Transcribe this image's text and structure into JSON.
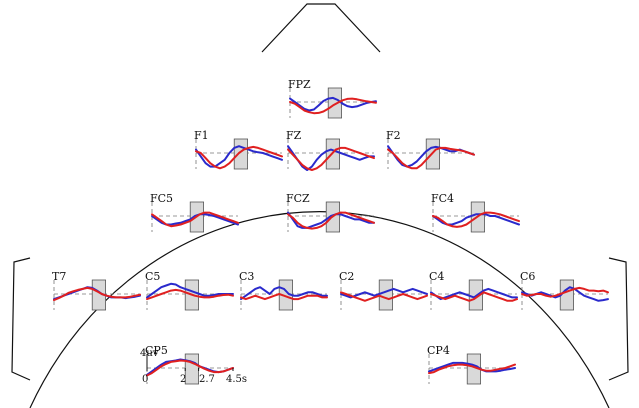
{
  "chart_data": {
    "type": "line",
    "legend": "none",
    "grid": false,
    "colors": {
      "series_a": "#2a2acc",
      "series_b": "#e02020",
      "window": "#d9d9d9",
      "outline": "#111111",
      "zero_line": "#777777"
    },
    "scale": {
      "amplitude_label": "4uv",
      "x_ticks": [
        "0",
        "2",
        "2.7",
        "4.5s"
      ],
      "x_values": [
        0,
        2,
        2.7,
        4.5
      ],
      "window_x": [
        2,
        2.7
      ]
    },
    "channels": [
      {
        "name": "FPZ",
        "blue": [
          1,
          0,
          -1,
          -2,
          -2.5,
          -2.2,
          -1,
          0.3,
          1,
          1.2,
          0.6,
          -0.5,
          -1.2,
          -1.5,
          -1.3,
          -0.8,
          -0.3,
          0,
          0.2
        ],
        "red": [
          0,
          -0.5,
          -1.5,
          -2.5,
          -3,
          -3.3,
          -3.2,
          -2.8,
          -2,
          -1,
          -0.2,
          0.5,
          0.9,
          1,
          0.8,
          0.5,
          0.2,
          0,
          -0.2
        ]
      },
      {
        "name": "F1",
        "blue": [
          1,
          -1,
          -3,
          -4,
          -4,
          -3,
          -2,
          0,
          1.5,
          2,
          1.5,
          1,
          0.5,
          0.2,
          0,
          -0.5,
          -1,
          -1.5,
          -2
        ],
        "red": [
          0.5,
          0,
          -1.5,
          -3,
          -4,
          -4.5,
          -4,
          -3,
          -1.5,
          0,
          1,
          1.5,
          1.8,
          1.5,
          1,
          0.5,
          0,
          -0.5,
          -1
        ]
      },
      {
        "name": "FZ",
        "blue": [
          2,
          0,
          -2,
          -4,
          -5,
          -4,
          -2,
          -0.5,
          0.5,
          1,
          0.5,
          0,
          -0.5,
          -1,
          -1.5,
          -2,
          -1.5,
          -1,
          -1
        ],
        "red": [
          1,
          -0.5,
          -2,
          -3.5,
          -4.5,
          -5,
          -4.5,
          -3.5,
          -2,
          -0.5,
          1,
          1.5,
          1.5,
          1,
          0.5,
          0,
          -0.5,
          -1,
          -1.5
        ]
      },
      {
        "name": "F2",
        "blue": [
          2,
          0,
          -2,
          -3.5,
          -4,
          -3.5,
          -2.5,
          -1,
          0.5,
          1.5,
          1.8,
          1.5,
          1,
          0.5,
          0.5,
          1,
          0.5,
          0,
          -0.5
        ],
        "red": [
          1,
          0,
          -1.5,
          -3,
          -4,
          -4.5,
          -4.5,
          -3.5,
          -2,
          -0.5,
          1,
          1.5,
          1.5,
          1.2,
          1,
          0.8,
          0.5,
          0,
          -0.5
        ]
      },
      {
        "name": "FC5",
        "blue": [
          0,
          -1,
          -2,
          -2.5,
          -2.5,
          -2.2,
          -2,
          -1.5,
          -1,
          0,
          0.5,
          0.5,
          0.3,
          0,
          -0.5,
          -1,
          -1.5,
          -2,
          -2.5
        ],
        "red": [
          0.5,
          -0.5,
          -1.5,
          -2.5,
          -3,
          -2.8,
          -2.5,
          -2,
          -1.5,
          -0.5,
          0.5,
          1,
          1,
          0.5,
          0,
          -0.5,
          -1,
          -1.5,
          -2
        ]
      },
      {
        "name": "FCZ",
        "blue": [
          1,
          -1,
          -3,
          -3.5,
          -3.5,
          -3,
          -2.5,
          -2,
          -1,
          0,
          0.5,
          0.5,
          0,
          -0.5,
          -1,
          -1,
          -1.5,
          -2,
          -2
        ],
        "red": [
          0.5,
          -0.5,
          -2,
          -3,
          -3.5,
          -3.7,
          -3.5,
          -3,
          -2,
          -0.5,
          0.5,
          1,
          1,
          0.5,
          0,
          -0.5,
          -1,
          -1.5,
          -2
        ]
      },
      {
        "name": "FC4",
        "blue": [
          0,
          -1,
          -2,
          -2.5,
          -2.5,
          -2,
          -1.5,
          -0.5,
          0,
          0.5,
          0.5,
          0.5,
          0,
          0,
          -0.5,
          -1,
          -1.5,
          -2,
          -2.5
        ],
        "red": [
          0,
          -0.5,
          -1.5,
          -2.5,
          -3,
          -3.2,
          -3,
          -2.5,
          -1.5,
          -0.5,
          0.5,
          1,
          1,
          0.8,
          0.5,
          0,
          -0.5,
          -1,
          -1.5
        ]
      },
      {
        "name": "T7",
        "blue": [
          -1.5,
          -1,
          -0.5,
          0,
          0.5,
          1,
          1.5,
          2,
          1.8,
          1,
          0,
          -0.5,
          -1,
          -1,
          -1,
          -1.2,
          -1,
          -0.8,
          -0.5
        ],
        "red": [
          -1.8,
          -1.2,
          -0.5,
          0.3,
          0.8,
          1.2,
          1.5,
          1.8,
          1.5,
          0.8,
          0,
          -0.5,
          -0.8,
          -1,
          -1,
          -1,
          -0.8,
          -0.5,
          -0.2
        ]
      },
      {
        "name": "C5",
        "blue": [
          -1,
          0,
          1,
          2,
          2.5,
          3,
          2.8,
          2,
          1.5,
          1,
          0.5,
          0,
          -0.5,
          -0.5,
          -0.3,
          0,
          0,
          0,
          0
        ],
        "red": [
          -1.5,
          -1,
          -0.5,
          0,
          0.5,
          1,
          1.2,
          1,
          0.5,
          0,
          -0.5,
          -0.8,
          -1,
          -1,
          -0.8,
          -0.5,
          -0.3,
          -0.2,
          -0.5
        ]
      },
      {
        "name": "C3",
        "blue": [
          -1.5,
          -0.5,
          0.5,
          1.5,
          2,
          1,
          0,
          1.5,
          2,
          1.5,
          0,
          -0.5,
          -0.5,
          0,
          0.5,
          0.5,
          0,
          -0.5,
          -0.5
        ],
        "red": [
          -1,
          -1.5,
          -1,
          -0.5,
          -1,
          -1.5,
          -1,
          -0.5,
          0,
          -0.5,
          -1,
          -1.5,
          -1.5,
          -1,
          -0.5,
          -0.5,
          -0.5,
          -1,
          -1
        ]
      },
      {
        "name": "C2",
        "blue": [
          0,
          -0.5,
          -1,
          -0.5,
          0,
          0.5,
          0,
          -0.5,
          0,
          0.5,
          1,
          1.5,
          1,
          0.5,
          1,
          1.5,
          1,
          0.5,
          0
        ],
        "red": [
          0.5,
          0,
          -0.5,
          -1,
          -1.5,
          -2,
          -1.5,
          -1,
          -0.5,
          -1,
          -1.5,
          -1,
          -0.5,
          0,
          -0.5,
          -1,
          -1.5,
          -1,
          -0.5
        ]
      },
      {
        "name": "C4",
        "blue": [
          0.5,
          -0.5,
          -1.5,
          -1,
          -0.5,
          0,
          0.5,
          0,
          -0.5,
          -1,
          0,
          1,
          1.5,
          1,
          0.5,
          0,
          -0.5,
          -1,
          -1
        ],
        "red": [
          0,
          -0.5,
          -1,
          -1.5,
          -1,
          -0.5,
          -1,
          -1.5,
          -2,
          -1.5,
          -0.5,
          0.5,
          0,
          -0.5,
          -1,
          -1.5,
          -2,
          -2,
          -1.5
        ]
      },
      {
        "name": "C6",
        "blue": [
          0.5,
          0,
          -0.5,
          0,
          0.5,
          0,
          -0.5,
          -1,
          -0.5,
          1,
          2,
          1.5,
          0.5,
          -0.5,
          -1,
          -1.5,
          -2,
          -1.8,
          -1.5
        ],
        "red": [
          0,
          -0.5,
          -0.3,
          0,
          0,
          -0.5,
          -0.8,
          -0.5,
          0,
          0.5,
          1,
          1.5,
          1.8,
          1.5,
          1,
          1,
          0.8,
          1,
          0.5
        ]
      },
      {
        "name": "CP5",
        "blue": [
          -2,
          -1,
          0,
          1,
          1.8,
          2,
          2.2,
          2.5,
          2.3,
          2,
          1.5,
          0.5,
          0,
          -0.5,
          -1,
          -1.2,
          -1,
          -0.5,
          0
        ],
        "red": [
          -2.2,
          -1.5,
          -0.5,
          0.5,
          1.2,
          1.8,
          2,
          2.2,
          2.1,
          1.8,
          1.2,
          0.5,
          -0.2,
          -0.8,
          -1.2,
          -1.2,
          -1,
          -0.5,
          0
        ]
      },
      {
        "name": "CP4",
        "blue": [
          -1,
          -0.5,
          0,
          0.5,
          1,
          1.5,
          1.5,
          1.5,
          1.3,
          1,
          0.5,
          -0.5,
          -1,
          -1,
          -1,
          -0.8,
          -0.5,
          -0.3,
          0
        ],
        "red": [
          -1.5,
          -1.2,
          -0.5,
          0,
          0.5,
          0.8,
          1,
          1,
          0.8,
          0.5,
          0,
          -0.5,
          -0.8,
          -0.8,
          -0.5,
          -0.2,
          0,
          0.5,
          1
        ]
      }
    ]
  }
}
